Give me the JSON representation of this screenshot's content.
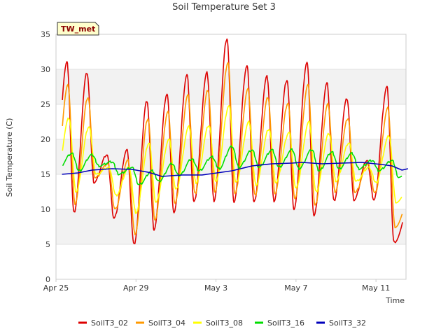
{
  "chart_data": {
    "type": "line",
    "title": "Soil Temperature Set 3",
    "xlabel": "Time",
    "ylabel": "Soil Temperature (C)",
    "badge": "TW_met",
    "xlim_days": [
      0,
      17.5
    ],
    "ylim": [
      0,
      35
    ],
    "yticks": [
      0,
      5,
      10,
      15,
      20,
      25,
      30,
      35
    ],
    "xticks": [
      {
        "day": 0,
        "label": "Apr 25"
      },
      {
        "day": 4,
        "label": "Apr 29"
      },
      {
        "day": 8,
        "label": "May 3"
      },
      {
        "day": 12,
        "label": "May 7"
      },
      {
        "day": 16,
        "label": "May 11"
      }
    ],
    "grid": true,
    "legend_position": "bottom",
    "series": [
      {
        "name": "SoilT3_02",
        "color": "#dd0000",
        "min": [
          12.5,
          9.5,
          13.8,
          8.7,
          5.0,
          7.1,
          9.5,
          11.0,
          11.2,
          11.0,
          11.0,
          11.2,
          10.0,
          9.0,
          11.2,
          11.3,
          11.3,
          5.3,
          12.4
        ],
        "max": [
          31.0,
          29.5,
          17.8,
          18.5,
          25.5,
          26.5,
          29.2,
          29.5,
          34.4,
          30.5,
          29.0,
          28.5,
          31.0,
          28.0,
          25.8,
          17.0,
          27.5
        ]
      },
      {
        "name": "SoilT3_04",
        "color": "#ff9900",
        "min": [
          13.2,
          10.8,
          14.5,
          10.0,
          6.5,
          8.5,
          10.8,
          12.2,
          12.5,
          12.2,
          12.0,
          12.3,
          11.5,
          10.5,
          12.5,
          12.4,
          12.3,
          7.5,
          13.6
        ],
        "max": [
          27.7,
          26.0,
          16.5,
          17.0,
          23.0,
          24.0,
          26.3,
          27.0,
          31.0,
          27.2,
          26.0,
          25.2,
          27.8,
          25.0,
          23.0,
          16.5,
          24.5
        ]
      },
      {
        "name": "SoilT3_08",
        "color": "#ffff00",
        "min": [
          14.0,
          12.5,
          15.0,
          12.0,
          9.5,
          11.0,
          12.8,
          13.8,
          14.0,
          13.8,
          13.5,
          13.8,
          13.0,
          12.5,
          14.0,
          14.0,
          13.8,
          11.0,
          14.5
        ],
        "max": [
          23.0,
          21.8,
          16.0,
          16.0,
          19.5,
          20.0,
          21.8,
          22.0,
          24.8,
          22.5,
          21.5,
          21.0,
          22.5,
          20.8,
          19.5,
          16.0,
          20.5
        ]
      },
      {
        "name": "SoilT3_16",
        "color": "#00dd00",
        "min": [
          16.0,
          15.5,
          16.2,
          15.0,
          13.5,
          14.0,
          14.8,
          15.5,
          15.8,
          16.0,
          16.0,
          16.0,
          15.8,
          15.5,
          15.8,
          15.8,
          15.5,
          14.5,
          16.5
        ],
        "max": [
          18.0,
          17.8,
          16.8,
          16.0,
          15.5,
          16.5,
          17.2,
          17.5,
          19.0,
          18.5,
          18.5,
          18.5,
          18.5,
          18.2,
          18.0,
          17.0,
          17.0
        ]
      },
      {
        "name": "SoilT3_32",
        "color": "#0000bb",
        "x": [
          0,
          0.8,
          1.5,
          2.5,
          3.5,
          4.3,
          5.0,
          6.0,
          7.0,
          8.0,
          8.5,
          9.5,
          10.5,
          11.5,
          12.0,
          13.0,
          14.0,
          15.0,
          16.0,
          16.5,
          17.0,
          17.3
        ],
        "y": [
          15.0,
          15.2,
          15.6,
          15.8,
          15.7,
          15.3,
          14.7,
          14.9,
          14.9,
          15.3,
          15.5,
          16.2,
          16.5,
          16.6,
          16.7,
          16.5,
          16.6,
          16.7,
          16.4,
          16.2,
          15.6,
          15.8
        ]
      }
    ]
  }
}
